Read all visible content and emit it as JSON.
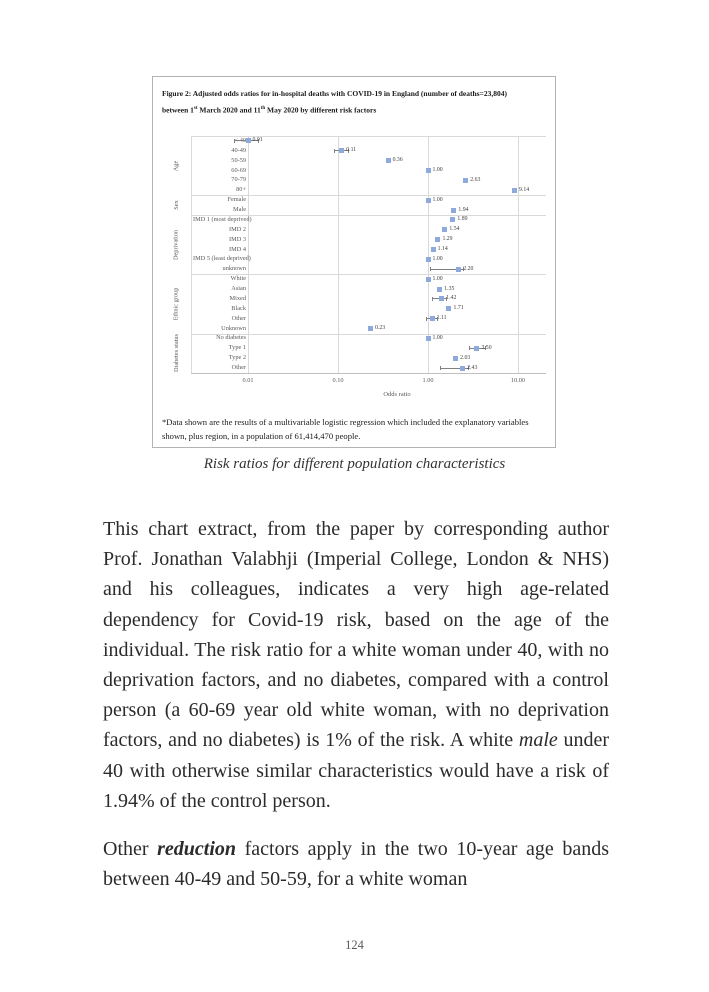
{
  "page": {
    "number": "124"
  },
  "figure": {
    "title_parts": {
      "p1": "Figure 2: Adjusted odds ratios for in-hospital deaths with COVID-19 in England (number of deaths=23,804) between 1",
      "sup1": "st",
      "p2": " March 2020 and 11",
      "sup2": "th",
      "p3": " May 2020 by different risk factors"
    },
    "footnote": "*Data shown are the results of a multivariable logistic regression which included the explanatory variables shown, plus region, in a population of 61,414,470 people."
  },
  "caption": "Risk ratios for different population characteristics",
  "colors": {
    "marker": "#8EA9DB",
    "gridline": "#D9D9D9",
    "axis_text": "#595959",
    "error_bar": "#808080"
  },
  "chart_data": {
    "type": "scatter",
    "title": "Adjusted odds ratios for in-hospital deaths with COVID-19 in England by different risk factors",
    "xlabel": "Odds ratio",
    "x_scale": "log",
    "xlim": [
      0.01,
      10.0
    ],
    "grid": "vertical-decades",
    "x_ticks": [
      0.01,
      0.1,
      1.0,
      10.0
    ],
    "x_tick_labels": [
      "0.01",
      "0.10",
      "1.00",
      "10.00"
    ],
    "groups": [
      {
        "name": "Age",
        "items": [
          {
            "label": "< 40",
            "value": 0.01,
            "display": "0.01",
            "ci": [
              0.007,
              0.013
            ]
          },
          {
            "label": "40-49",
            "value": 0.11,
            "display": "0.11",
            "ci": [
              0.09,
              0.13
            ]
          },
          {
            "label": "50-59",
            "value": 0.36,
            "display": "0.36",
            "ci": null
          },
          {
            "label": "60-69",
            "value": 1.0,
            "display": "1.00",
            "ci": null
          },
          {
            "label": "70-79",
            "value": 2.63,
            "display": "2.63",
            "ci": null
          },
          {
            "label": "80+",
            "value": 9.14,
            "display": "9.14",
            "ci": null
          }
        ]
      },
      {
        "name": "Sex",
        "items": [
          {
            "label": "Female",
            "value": 1.0,
            "display": "1.00",
            "ci": null
          },
          {
            "label": "Male",
            "value": 1.94,
            "display": "1.94",
            "ci": null
          }
        ]
      },
      {
        "name": "Deprivation",
        "items": [
          {
            "label": "IMD 1 (most deprived)",
            "value": 1.89,
            "display": "1.89",
            "ci": null
          },
          {
            "label": "IMD 2",
            "value": 1.54,
            "display": "1.54",
            "ci": null
          },
          {
            "label": "IMD 3",
            "value": 1.29,
            "display": "1.29",
            "ci": null
          },
          {
            "label": "IMD 4",
            "value": 1.14,
            "display": "1.14",
            "ci": null
          },
          {
            "label": "IMD 5 (least deprived)",
            "value": 1.0,
            "display": "1.00",
            "ci": null
          },
          {
            "label": "unknown",
            "value": 2.2,
            "display": "2.20",
            "ci": [
              1.05,
              2.45
            ]
          }
        ]
      },
      {
        "name": "Ethnic group",
        "items": [
          {
            "label": "White",
            "value": 1.0,
            "display": "1.00",
            "ci": null
          },
          {
            "label": "Asian",
            "value": 1.35,
            "display": "1.35",
            "ci": null
          },
          {
            "label": "Mixed",
            "value": 1.42,
            "display": "1.42",
            "ci": [
              1.12,
              1.58
            ]
          },
          {
            "label": "Black",
            "value": 1.71,
            "display": "1.71",
            "ci": null
          },
          {
            "label": "Other",
            "value": 1.11,
            "display": "1.11",
            "ci": [
              0.96,
              1.26
            ]
          },
          {
            "label": "Unknown",
            "value": 0.23,
            "display": "0.23",
            "ci": null
          }
        ]
      },
      {
        "name": "Diabetes status",
        "items": [
          {
            "label": "No diabetes",
            "value": 1.0,
            "display": "1.00",
            "ci": null
          },
          {
            "label": "Type 1",
            "value": 3.5,
            "display": "3.50",
            "ci": [
              2.85,
              4.3
            ]
          },
          {
            "label": "Type 2",
            "value": 2.03,
            "display": "2.03",
            "ci": null
          },
          {
            "label": "Other",
            "value": 2.43,
            "display": "2.43",
            "ci": [
              1.35,
              2.78
            ]
          }
        ]
      }
    ]
  },
  "body": {
    "para1": {
      "a": "This chart extract, from the paper by corresponding author Prof. Jonathan Valabhji (Imperial College, London & NHS) and his colleagues, indicates a very high age-related dependency for Covid-19 risk, based on the age of the individual. The risk ratio for a white woman under 40, with no deprivation factors, and no diabetes, compared with a control person (a 60-69 year old white woman, with no deprivation factors, and no diabetes) is 1% of the risk. A white ",
      "italic": "male",
      "b": " under 40 with otherwise similar characteristics would have a risk of 1.94% of the control person."
    },
    "para2": {
      "a": "Other ",
      "bold_italic": "reduction",
      "b": " factors apply in the two 10-year age bands between 40-49 and 50-59, for a white woman"
    }
  }
}
